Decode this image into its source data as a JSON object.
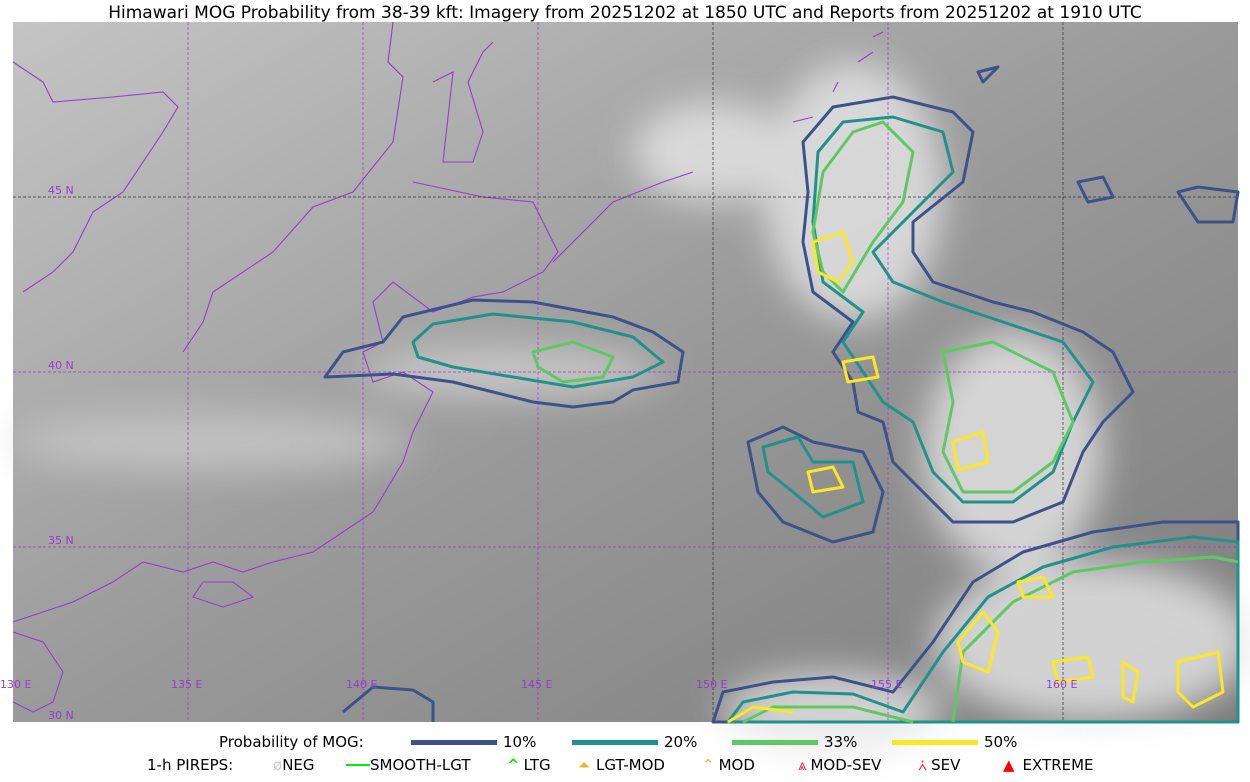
{
  "title": "Himawari MOG Probability from 38-39 kft: Imagery from 20251202 at 1850 UTC and Reports from 20251202 at 1910 UTC",
  "map": {
    "lon_range": [
      130,
      165
    ],
    "lat_range": [
      30,
      50
    ],
    "lon_labels": [
      "130 E",
      "135 E",
      "140 E",
      "145 E",
      "150 E",
      "155 E",
      "160 E"
    ],
    "lat_labels": [
      "45 N",
      "40 N",
      "35 N",
      "30 N"
    ],
    "gridline_color": "#9a3ad0",
    "coastline_color": "#9a3ad0"
  },
  "legend": {
    "probability_title": "Probability of MOG:",
    "levels": [
      {
        "label": "10%",
        "color": "#3b528b"
      },
      {
        "label": "20%",
        "color": "#21918c"
      },
      {
        "label": "33%",
        "color": "#5ec962"
      },
      {
        "label": "50%",
        "color": "#fde725"
      }
    ],
    "pireps_title": "1-h PIREPS:",
    "pireps": [
      {
        "label": "NEG",
        "color": "#c8c8f0",
        "icon": "neg-icon"
      },
      {
        "label": "SMOOTH-LGT",
        "color": "#00ee00",
        "icon": "line-icon"
      },
      {
        "label": "LTG",
        "color": "#00ee00",
        "icon": "caret-icon"
      },
      {
        "label": "LGT-MOD",
        "color": "#ffb020",
        "icon": "lgt-mod-icon"
      },
      {
        "label": "MOD",
        "color": "#ffb020",
        "icon": "mod-icon"
      },
      {
        "label": "MOD-SEV",
        "color": "#ff2020",
        "icon": "mod-sev-icon"
      },
      {
        "label": "SEV",
        "color": "#ff2020",
        "icon": "sev-icon"
      },
      {
        "label": "EXTREME",
        "color": "#ff0000",
        "icon": "extreme-icon"
      }
    ]
  }
}
